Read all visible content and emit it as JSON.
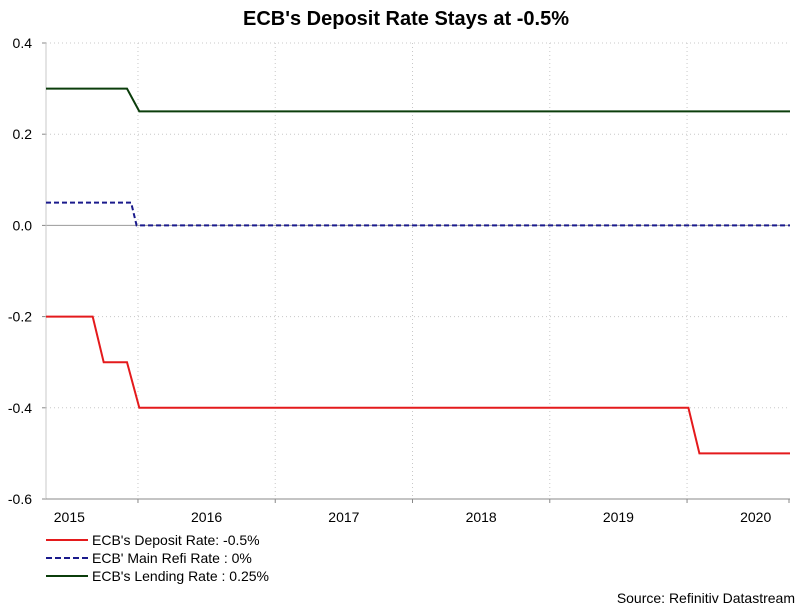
{
  "chart_data": {
    "type": "line",
    "title": "ECB's Deposit Rate Stays at -0.5%",
    "ylim": [
      -0.6,
      0.4
    ],
    "y_ticks": [
      "0.4",
      "0.2",
      "0.0",
      "-0.2",
      "-0.4",
      "-0.6"
    ],
    "y_tick_values": [
      0.4,
      0.2,
      0.0,
      -0.2,
      -0.4,
      -0.6
    ],
    "x_range": [
      2014.83,
      2020.25
    ],
    "x_year_labels": [
      {
        "label": "2015",
        "pos": 2015.0
      },
      {
        "label": "2016",
        "pos": 2016.0
      },
      {
        "label": "2017",
        "pos": 2017.0
      },
      {
        "label": "2018",
        "pos": 2018.0
      },
      {
        "label": "2019",
        "pos": 2019.0
      },
      {
        "label": "2020",
        "pos": 2020.0
      }
    ],
    "x_boundaries": [
      2015.5,
      2016.5,
      2017.5,
      2018.5,
      2019.5,
      2020.5
    ],
    "grid": true,
    "legend_position": "bottom-left",
    "series": [
      {
        "name": "ECB's Deposit Rate: -0.5%",
        "color": "#e41a1c",
        "style": "solid",
        "x": [
          2014.83,
          2015.17,
          2015.25,
          2015.42,
          2015.51,
          2019.51,
          2019.59,
          2020.25
        ],
        "y": [
          -0.2,
          -0.2,
          -0.3,
          -0.3,
          -0.4,
          -0.4,
          -0.5,
          -0.5
        ]
      },
      {
        "name": "ECB' Main Refi Rate : 0%",
        "color": "#1a1a8c",
        "style": "dashed",
        "x": [
          2014.83,
          2015.45,
          2015.49,
          2020.25
        ],
        "y": [
          0.05,
          0.05,
          0.0,
          0.0
        ]
      },
      {
        "name": "ECB's Lending Rate : 0.25%",
        "color": "#0b3d0b",
        "style": "solid",
        "x": [
          2014.83,
          2015.42,
          2015.51,
          2020.25
        ],
        "y": [
          0.3,
          0.3,
          0.25,
          0.25
        ]
      }
    ],
    "source": "Source: Refinitiv Datastream"
  }
}
